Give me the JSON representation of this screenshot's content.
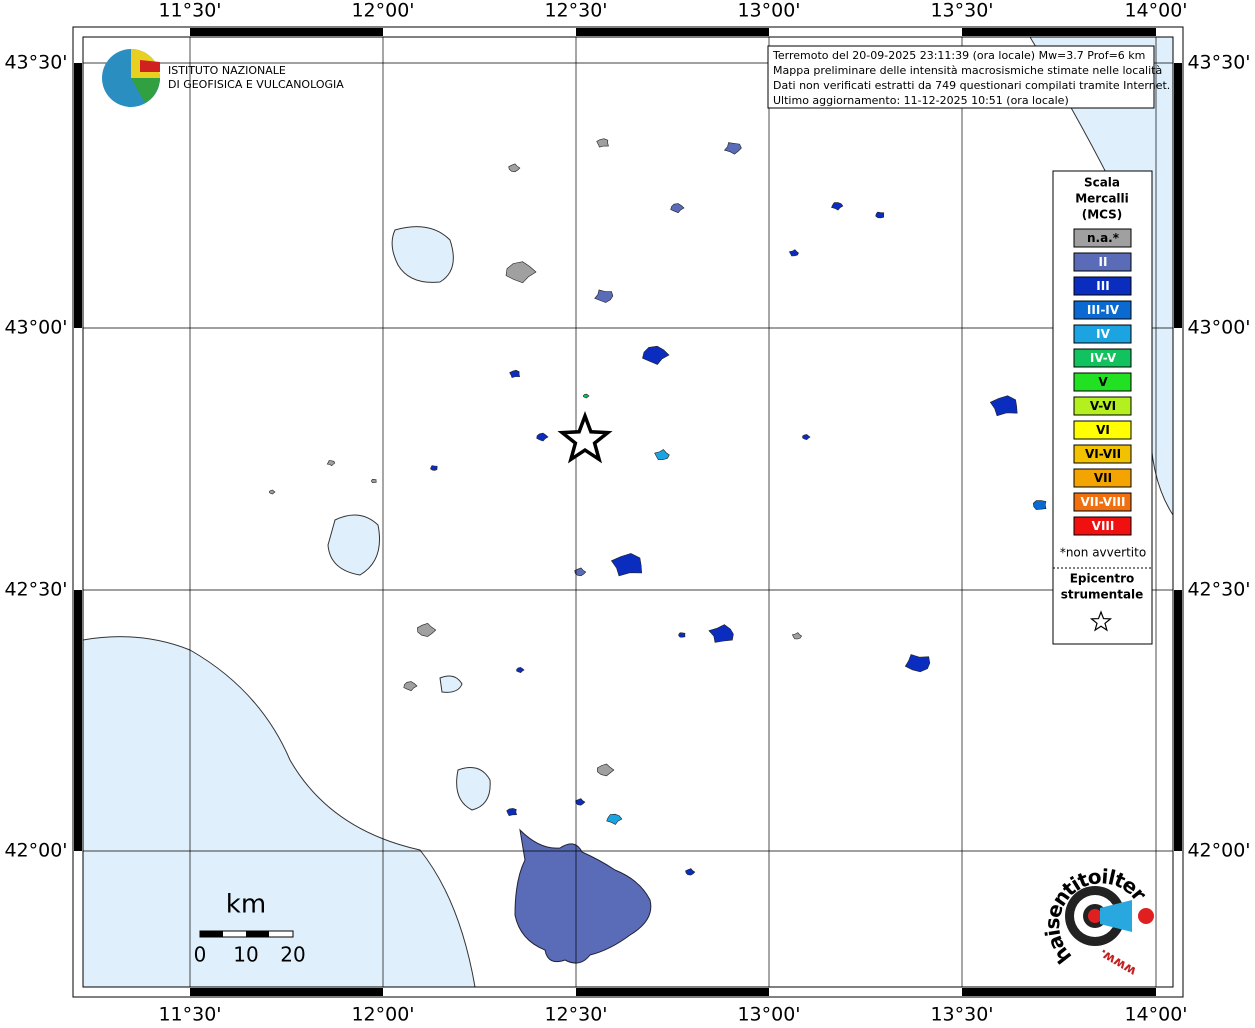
{
  "header": {
    "institute": [
      "ISTITUTO NAZIONALE",
      "DI GEOFISICA E VULCANOLOGIA"
    ],
    "info": [
      "Terremoto del 20-09-2025 23:11:39 (ora locale) Mw=3.7 Prof=6 km",
      "Mappa preliminare delle intensità macrosismiche stimate nelle località",
      "Dati non verificati estratti da 749 questionari compilati tramite Internet.",
      "Ultimo aggiornamento: 11-12-2025 10:51 (ora locale)"
    ]
  },
  "map": {
    "lon_labels": [
      "11°30'",
      "12°00'",
      "12°30'",
      "13°00'",
      "13°30'",
      "14°00'"
    ],
    "lat_labels": [
      "43°30'",
      "43°00'",
      "42°30'",
      "42°00'"
    ]
  },
  "legend": {
    "title": [
      "Scala",
      "Mercalli",
      "(MCS)"
    ],
    "items": [
      {
        "label": "n.a.*",
        "color": "#a0a0a0"
      },
      {
        "label": "II",
        "color": "#5a6cb8"
      },
      {
        "label": "III",
        "color": "#0b2dbf"
      },
      {
        "label": "III-IV",
        "color": "#0a6ad2"
      },
      {
        "label": "IV",
        "color": "#1ba3e2"
      },
      {
        "label": "IV-V",
        "color": "#12c25e"
      },
      {
        "label": "V",
        "color": "#22e022"
      },
      {
        "label": "V-VI",
        "color": "#b4f020"
      },
      {
        "label": "VI",
        "color": "#ffff00"
      },
      {
        "label": "VI-VII",
        "color": "#f2c200"
      },
      {
        "label": "VII",
        "color": "#f4a400"
      },
      {
        "label": "VII-VIII",
        "color": "#f07010"
      },
      {
        "label": "VIII",
        "color": "#f01010"
      }
    ],
    "note": "*non avvertito",
    "epicenter": [
      "Epicentro",
      "strumentale"
    ]
  },
  "scale": {
    "unit": "km",
    "labels": [
      "0",
      "10",
      "20"
    ]
  },
  "logo": {
    "text": "haisentitoilterremoto.it",
    "prefix": "www."
  }
}
